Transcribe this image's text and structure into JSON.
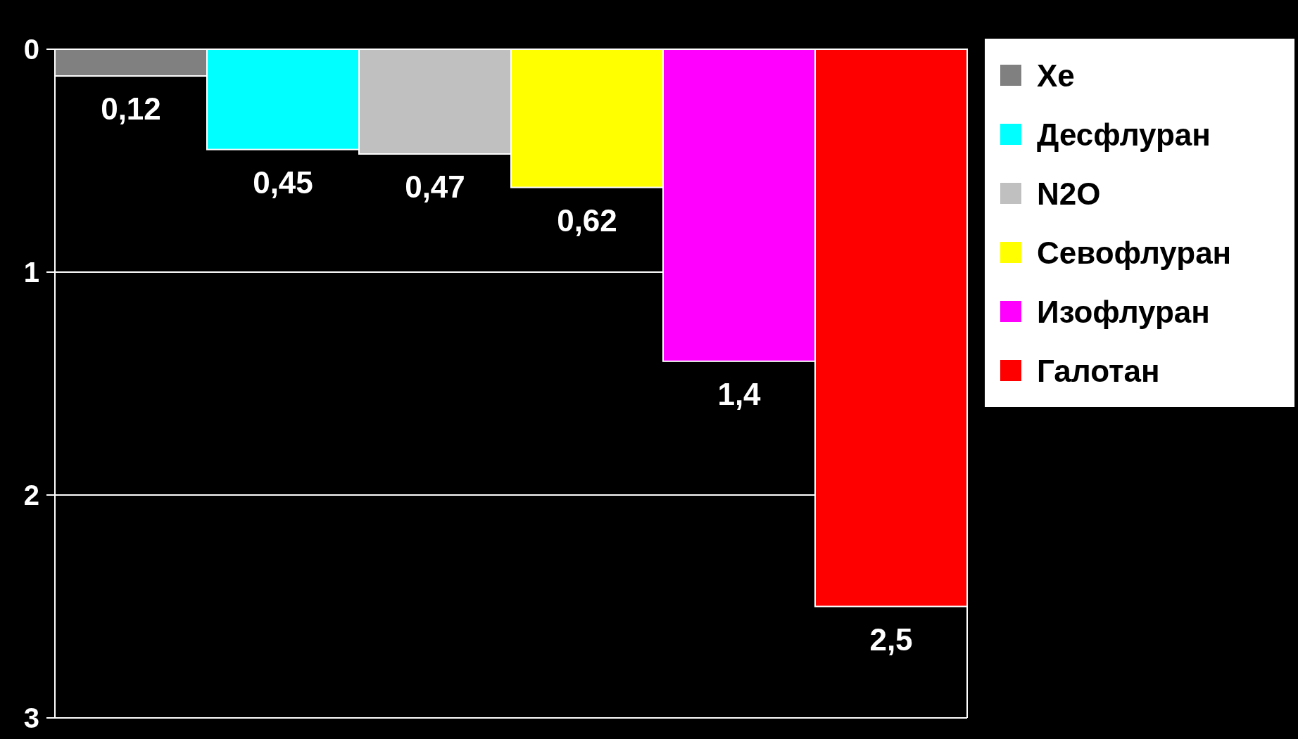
{
  "chart_data": {
    "type": "bar",
    "categories": [
      null
    ],
    "series": [
      {
        "name": "Xe",
        "color": "#808080",
        "values": [
          0.12
        ],
        "value_labels": [
          "0,12"
        ]
      },
      {
        "name": "Десфлуран",
        "color": "#00ffff",
        "values": [
          0.45
        ],
        "value_labels": [
          "0,45"
        ]
      },
      {
        "name": "N2O",
        "color": "#c0c0c0",
        "values": [
          0.47
        ],
        "value_labels": [
          "0,47"
        ]
      },
      {
        "name": "Севофлуран",
        "color": "#ffff00",
        "values": [
          0.62
        ],
        "value_labels": [
          "0,62"
        ]
      },
      {
        "name": "Изофлуран",
        "color": "#ff00ff",
        "values": [
          1.4
        ],
        "value_labels": [
          "1,4"
        ]
      },
      {
        "name": "Галотан",
        "color": "#ff0000",
        "values": [
          2.5
        ],
        "value_labels": [
          "2,5"
        ]
      }
    ],
    "ylim": [
      3,
      0
    ],
    "yticks": [
      0,
      1,
      2,
      3
    ],
    "grid": "y",
    "legend": "right"
  }
}
